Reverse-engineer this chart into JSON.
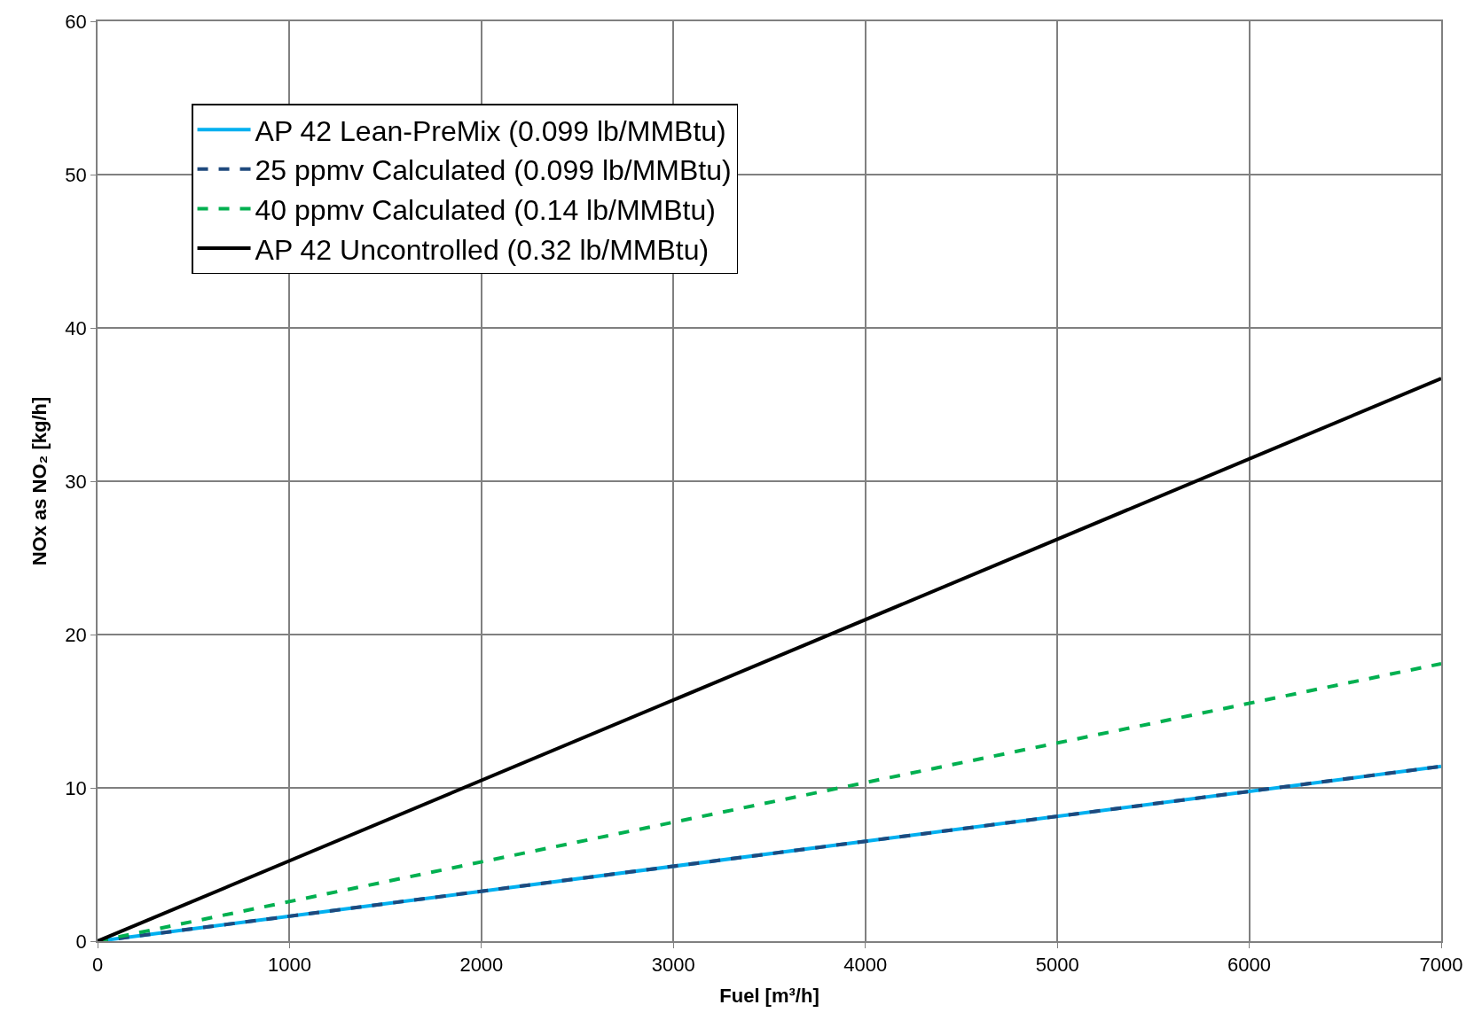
{
  "chart_data": {
    "type": "line",
    "xlabel": "Fuel [m³/h]",
    "ylabel": "NOx as NO₂ [kg/h]",
    "x": [
      0,
      7000
    ],
    "series": [
      {
        "name": "AP 42 Lean-PreMix (0.099 lb/MMBtu)",
        "color": "#00b0f0",
        "values": [
          0,
          11.4
        ],
        "line_style": "solid"
      },
      {
        "name": "25 ppmv Calculated (0.099 lb/MMBtu)",
        "color": "#1f497d",
        "values": [
          0,
          11.4
        ],
        "line_style": "dashed"
      },
      {
        "name": "40 ppmv Calculated (0.14 lb/MMBtu)",
        "color": "#00b050",
        "values": [
          0,
          18.1
        ],
        "line_style": "dashed"
      },
      {
        "name": "AP 42 Uncontrolled (0.32 lb/MMBtu)",
        "color": "#000000",
        "values": [
          0,
          36.7
        ],
        "line_style": "solid"
      }
    ],
    "xlim": [
      0,
      7000
    ],
    "xticks": [
      0,
      1000,
      2000,
      3000,
      4000,
      5000,
      6000,
      7000
    ],
    "ylim": [
      0,
      60
    ],
    "yticks": [
      0,
      10,
      20,
      30,
      40,
      50,
      60
    ],
    "grid": true,
    "legend": "top left",
    "marker": "none"
  }
}
